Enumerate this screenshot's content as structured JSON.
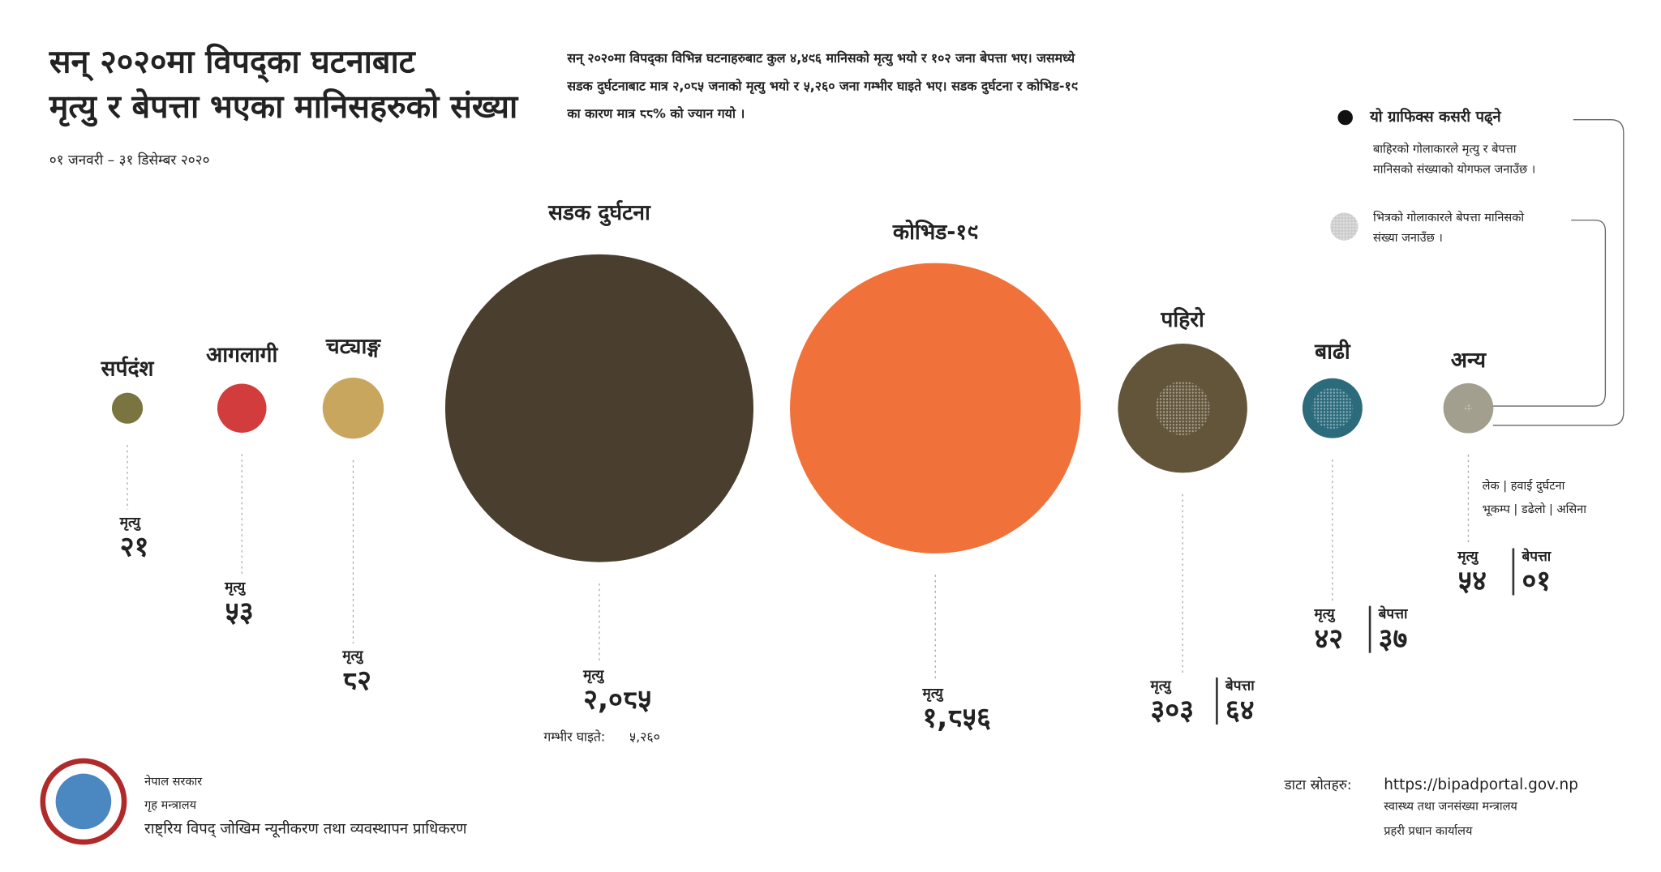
{
  "chart_data": {
    "type": "bubble",
    "title": [
      "सन् २०२०मा विपद्का घटनाबाट",
      "मृत्यु र बेपत्ता भएका मानिसहरुको संख्या"
    ],
    "subtitle": "०१ जनवरी – ३१ डिसेम्बर २०२०",
    "description": [
      "सन् २०२०मा  विपद्का विभिन्न घटनाहरुबाट कुल ४,४९६ मानिसको मृत्यु भयो र १०२ जना बेपत्ता भए। जसमध्ये",
      "सडक दुर्घटनाबाट मात्र २,०८५ जनाको मृत्यु भयो र ५,२६० जना गम्भीर घाइते भए।  सडक दुर्घटना र कोभिड-१९",
      "का कारण मात्र ८८% को ज्यान गयो ।"
    ],
    "categories": [
      "सर्पदंश",
      "आगलागी",
      "चट्याङ्ग",
      "सडक दुर्घटना",
      "कोभिड-१९",
      "पहिरो",
      "बाढी",
      "अन्य"
    ],
    "colors": [
      "#7a7540",
      "#d23c3c",
      "#c9a65e",
      "#4a3e2e",
      "#f0723a",
      "#62553a",
      "#2c6b7c",
      "#a29f8f"
    ],
    "series": [
      {
        "name": "मृत्यु",
        "values": [
          21,
          53,
          82,
          2085,
          1856,
          303,
          42,
          54
        ],
        "value_labels": [
          "२१",
          "५३",
          "८२",
          "२,०८५",
          "१,८५६",
          "३०३",
          "४२",
          "५४"
        ]
      },
      {
        "name": "बेपत्ता",
        "values": [
          null,
          null,
          null,
          null,
          null,
          64,
          37,
          1
        ],
        "value_labels": [
          null,
          null,
          null,
          null,
          null,
          "६४",
          "३७",
          "०१"
        ]
      }
    ],
    "injured": {
      "label": "गम्भीर घाइते:",
      "value": 5260,
      "value_label": "५,२६०"
    },
    "other_note": [
      "लेक | हवाई दुर्घटना",
      "भूकम्प | डढेलो | असिना"
    ],
    "how_to_read": {
      "title": "यो ग्राफिक्स कसरी पढ्ने",
      "outer": [
        "बाहिरको गोलाकारले मृत्यु र बेपत्ता",
        "मानिसको संख्याको योगफल जनाउँछ ।"
      ],
      "inner": [
        "भित्रको गोलाकारले बेपत्ता मानिसको",
        "संख्या जनाउँछ ।"
      ]
    }
  },
  "footer": {
    "org": [
      "नेपाल सरकार",
      "गृह मन्त्रालय",
      "राष्ट्रिय विपद् जोखिम न्यूनीकरण तथा व्यवस्थापन प्राधिकरण"
    ],
    "sources_label": "डाटा स्रोतहरु:",
    "sources": [
      "https://bipadportal.gov.np",
      "स्वास्थ्य तथा जनसंख्या मन्त्रालय",
      "प्रहरी प्रधान कार्यालय"
    ]
  }
}
